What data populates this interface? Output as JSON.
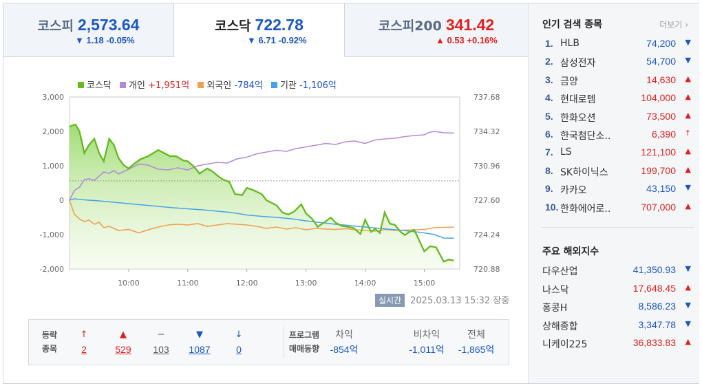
{
  "tabs": [
    {
      "name": "코스피",
      "price": "2,573.64",
      "change": "▼ 1.18 -0.05%",
      "dir": "down"
    },
    {
      "name": "코스닥",
      "price": "722.78",
      "change": "▼ 6.71 -0.92%",
      "dir": "down"
    },
    {
      "name": "코스피200",
      "price": "341.42",
      "change": "▲ 0.53 +0.16%",
      "dir": "up"
    }
  ],
  "legend": {
    "kosdaq": "코스닥",
    "individual_label": "개인",
    "individual_value": "+1,951억",
    "foreign_label": "외국인",
    "foreign_value": "-784억",
    "institution_label": "기관",
    "institution_value": "-1,106억"
  },
  "colors": {
    "kosdaq": "#66bb22",
    "individual": "#b48ad8",
    "foreign": "#f0a050",
    "institution": "#47a3e6",
    "up": "#e02020",
    "down": "#1a56c4"
  },
  "status": {
    "badge": "실시간",
    "timestamp": "2025.03.13 15:32",
    "state": "장중"
  },
  "breadth": {
    "label_top": "등락",
    "label_bottom": "종목",
    "items": [
      {
        "icon": "↑",
        "value": "2",
        "color": "#e02020"
      },
      {
        "icon": "▲",
        "value": "529",
        "color": "#e02020"
      },
      {
        "icon": "−",
        "value": "103",
        "color": "#555555"
      },
      {
        "icon": "▼",
        "value": "1087",
        "color": "#1a56c4"
      },
      {
        "icon": "↓",
        "value": "0",
        "color": "#1a56c4"
      }
    ]
  },
  "program": {
    "label_top": "프로그램",
    "label_bottom": "매매동향",
    "items": [
      {
        "head": "차익",
        "value": "-854억"
      },
      {
        "head": "비차익",
        "value": "-1,011억"
      },
      {
        "head": "전체",
        "value": "-1,865억"
      }
    ]
  },
  "popular": {
    "title": "인기 검색 종목",
    "more": "더보기",
    "items": [
      {
        "rank": "1.",
        "name": "HLB",
        "price": "74,200",
        "arrow": "▼",
        "dir": "down"
      },
      {
        "rank": "2.",
        "name": "삼성전자",
        "price": "54,700",
        "arrow": "▼",
        "dir": "down"
      },
      {
        "rank": "3.",
        "name": "금양",
        "price": "14,630",
        "arrow": "▲",
        "dir": "up"
      },
      {
        "rank": "4.",
        "name": "현대로템",
        "price": "104,000",
        "arrow": "▲",
        "dir": "up"
      },
      {
        "rank": "5.",
        "name": "한화오션",
        "price": "73,500",
        "arrow": "▲",
        "dir": "up"
      },
      {
        "rank": "6.",
        "name": "한국첨단소..",
        "price": "6,390",
        "arrow": "↑",
        "dir": "up"
      },
      {
        "rank": "7.",
        "name": "LS",
        "price": "121,100",
        "arrow": "▲",
        "dir": "up"
      },
      {
        "rank": "8.",
        "name": "SK하이닉스",
        "price": "199,700",
        "arrow": "▲",
        "dir": "up"
      },
      {
        "rank": "9.",
        "name": "카카오",
        "price": "43,150",
        "arrow": "▼",
        "dir": "down"
      },
      {
        "rank": "10.",
        "name": "한화에어로..",
        "price": "707,000",
        "arrow": "▲",
        "dir": "up"
      }
    ]
  },
  "overseas": {
    "title": "주요 해외지수",
    "items": [
      {
        "name": "다우산업",
        "price": "41,350.93",
        "arrow": "▼",
        "dir": "down"
      },
      {
        "name": "나스닥",
        "price": "17,648.45",
        "arrow": "▲",
        "dir": "up"
      },
      {
        "name": "홍콩H",
        "price": "8,586.23",
        "arrow": "▼",
        "dir": "down"
      },
      {
        "name": "상해종합",
        "price": "3,347.78",
        "arrow": "▼",
        "dir": "down"
      },
      {
        "name": "니케이225",
        "price": "36,833.83",
        "arrow": "▲",
        "dir": "up"
      }
    ]
  },
  "chart_data": {
    "type": "line",
    "left_axis": {
      "ticks": [
        "3,000",
        "2,000",
        "1,000",
        "0",
        "-1,000",
        "-2,000"
      ],
      "ylim": [
        -2000,
        3000
      ]
    },
    "right_axis": {
      "ticks": [
        "737.68",
        "734.32",
        "730.96",
        "727.60",
        "724.24",
        "720.88"
      ],
      "ylim": [
        720.88,
        737.68
      ]
    },
    "x_ticks": [
      "10:00",
      "11:00",
      "12:00",
      "13:00",
      "14:00",
      "15:00"
    ],
    "x_tick_hours": [
      10,
      11,
      12,
      13,
      14,
      15
    ],
    "xlim": [
      9,
      15.6
    ],
    "reference_line": 729.49,
    "series": [
      {
        "name": "코스닥",
        "axis": "right",
        "key": "kosdaq",
        "x": [
          9,
          9.1,
          9.17,
          9.25,
          9.33,
          9.42,
          9.5,
          9.58,
          9.67,
          9.75,
          9.83,
          9.92,
          10,
          10.1,
          10.2,
          10.33,
          10.5,
          10.6,
          10.7,
          10.8,
          10.92,
          11,
          11.1,
          11.2,
          11.33,
          11.42,
          11.5,
          11.6,
          11.7,
          11.8,
          11.92,
          12,
          12.1,
          12.25,
          12.33,
          12.5,
          12.6,
          12.7,
          12.8,
          12.92,
          13,
          13.1,
          13.2,
          13.3,
          13.42,
          13.5,
          13.6,
          13.7,
          13.8,
          13.92,
          14,
          14.1,
          14.17,
          14.25,
          14.33,
          14.42,
          14.5,
          14.6,
          14.67,
          14.75,
          14.83,
          14.92,
          15,
          15.1,
          15.2,
          15.33,
          15.42,
          15.5
        ],
        "y": [
          734.8,
          735.0,
          734.3,
          732.2,
          733.0,
          733.6,
          732.2,
          731.4,
          733.6,
          733.0,
          731.7,
          731.0,
          730.7,
          731.2,
          731.6,
          731.9,
          732.5,
          732.2,
          731.9,
          731.9,
          731.5,
          731.4,
          730.9,
          730.2,
          730.7,
          730.4,
          730.0,
          729.6,
          729.4,
          728.2,
          728.1,
          728.8,
          728.6,
          728.2,
          727.6,
          727.1,
          726.4,
          726.2,
          726.5,
          727.2,
          726.3,
          725.8,
          725.0,
          725.4,
          725.9,
          725.4,
          725.1,
          725.0,
          724.9,
          724.3,
          725.7,
          724.5,
          724.8,
          724.4,
          726.4,
          725.3,
          725.2,
          724.5,
          724.2,
          724.5,
          724.7,
          723.6,
          722.6,
          723.1,
          723.0,
          721.6,
          721.8,
          721.7
        ]
      },
      {
        "name": "개인",
        "axis": "left",
        "key": "individual",
        "x": [
          9,
          9.08,
          9.17,
          9.25,
          9.33,
          9.42,
          9.5,
          9.58,
          9.67,
          9.75,
          9.83,
          10,
          10.17,
          10.33,
          10.5,
          10.67,
          10.83,
          11,
          11.17,
          11.33,
          11.5,
          11.67,
          11.83,
          12,
          12.17,
          12.33,
          12.5,
          12.67,
          12.83,
          13,
          13.17,
          13.33,
          13.5,
          13.67,
          13.83,
          14,
          14.17,
          14.33,
          14.5,
          14.67,
          14.83,
          15,
          15.08,
          15.17,
          15.33,
          15.5
        ],
        "y": [
          0,
          280,
          380,
          600,
          620,
          580,
          700,
          820,
          780,
          860,
          760,
          900,
          1050,
          1020,
          900,
          880,
          940,
          880,
          1000,
          1050,
          1100,
          1080,
          1200,
          1250,
          1350,
          1400,
          1450,
          1420,
          1500,
          1550,
          1600,
          1650,
          1620,
          1700,
          1720,
          1650,
          1750,
          1780,
          1800,
          1850,
          1880,
          1900,
          1970,
          2000,
          1960,
          1951
        ]
      },
      {
        "name": "외국인",
        "axis": "left",
        "key": "foreign",
        "x": [
          9,
          9.08,
          9.17,
          9.25,
          9.33,
          9.42,
          9.5,
          9.58,
          9.67,
          9.75,
          9.83,
          10,
          10.17,
          10.33,
          10.5,
          10.67,
          10.83,
          11,
          11.17,
          11.33,
          11.5,
          11.67,
          11.83,
          12,
          12.17,
          12.33,
          12.5,
          12.67,
          12.83,
          13,
          13.17,
          13.33,
          13.5,
          13.67,
          13.83,
          14,
          14.17,
          14.33,
          14.5,
          14.67,
          14.83,
          15,
          15.17,
          15.33,
          15.5
        ],
        "y": [
          0,
          -400,
          -550,
          -620,
          -580,
          -700,
          -640,
          -800,
          -760,
          -820,
          -880,
          -850,
          -950,
          -860,
          -780,
          -720,
          -700,
          -720,
          -680,
          -760,
          -720,
          -680,
          -700,
          -720,
          -760,
          -820,
          -780,
          -840,
          -800,
          -860,
          -820,
          -840,
          -850,
          -830,
          -860,
          -880,
          -900,
          -850,
          -880,
          -870,
          -860,
          -850,
          -800,
          -790,
          -784
        ]
      },
      {
        "name": "기관",
        "axis": "left",
        "key": "institution",
        "x": [
          9,
          9.08,
          9.25,
          9.5,
          9.75,
          10,
          10.25,
          10.5,
          10.75,
          11,
          11.25,
          11.5,
          11.75,
          12,
          12.25,
          12.5,
          12.75,
          13,
          13.25,
          13.5,
          13.75,
          14,
          14.25,
          14.5,
          14.75,
          15,
          15.17,
          15.33,
          15.5
        ],
        "y": [
          0,
          40,
          10,
          -20,
          -60,
          -100,
          -140,
          -180,
          -220,
          -250,
          -280,
          -320,
          -360,
          -430,
          -470,
          -500,
          -540,
          -600,
          -650,
          -700,
          -740,
          -780,
          -820,
          -860,
          -900,
          -950,
          -1000,
          -1100,
          -1106
        ]
      }
    ]
  }
}
